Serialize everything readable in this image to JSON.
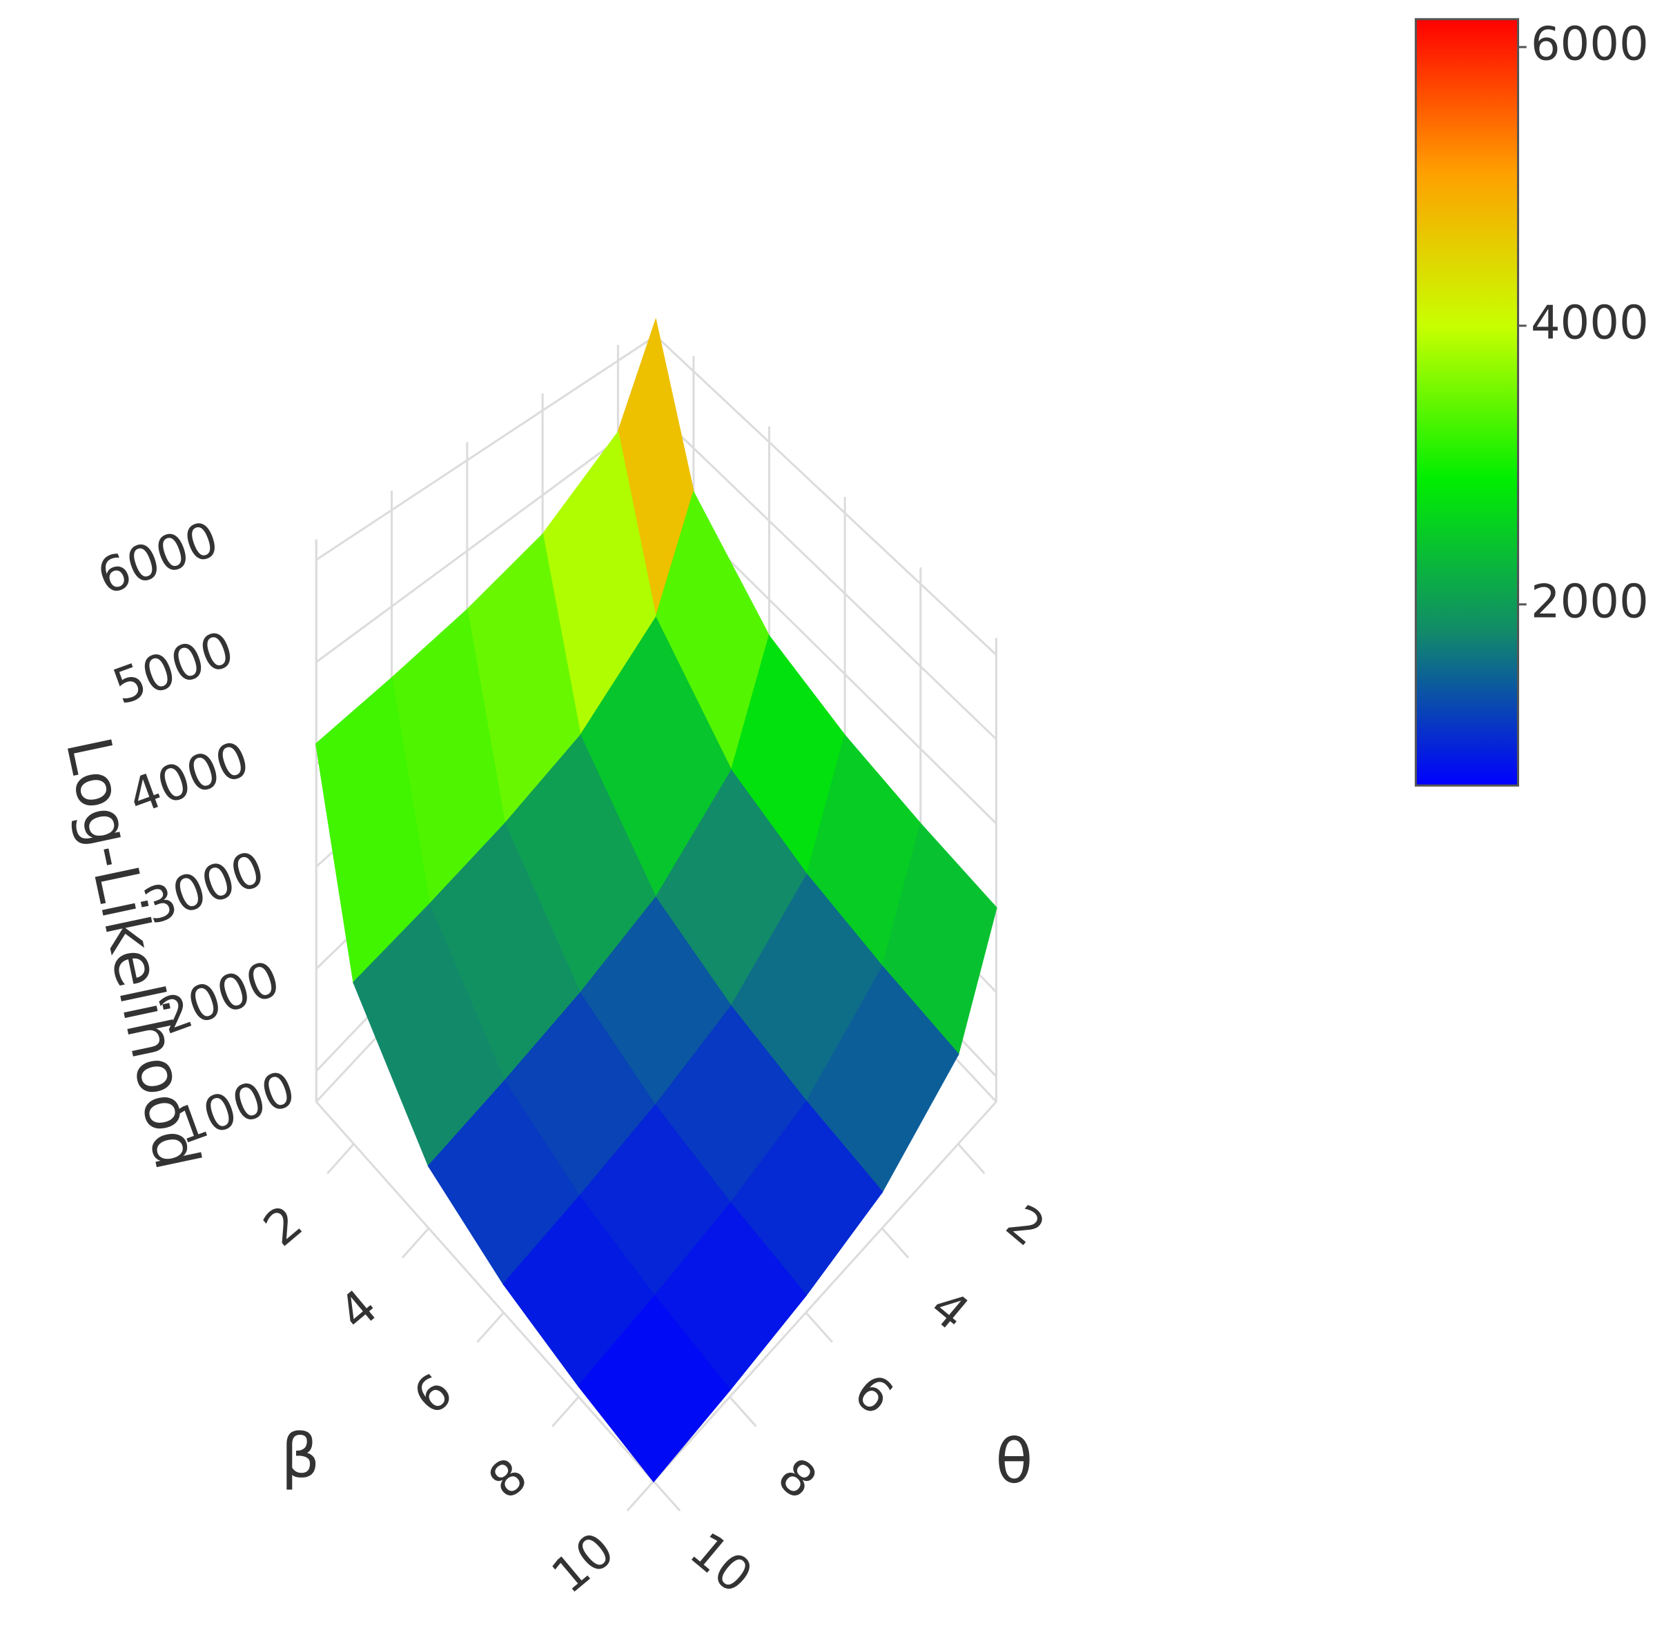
{
  "chart_data": {
    "type": "surface",
    "x_label": "β",
    "y_label": "θ",
    "z_label": "Log-Likelihood",
    "x": [
      1,
      2,
      4,
      6,
      8,
      10
    ],
    "y": [
      1,
      2,
      4,
      6,
      8,
      10
    ],
    "z": [
      [
        6200,
        5089,
        4534,
        4348,
        4256,
        4200
      ],
      [
        4422,
        3219,
        2617,
        2416,
        2316,
        2256
      ],
      [
        3533,
        2283,
        1658,
        1450,
        1346,
        1283
      ],
      [
        3237,
        1972,
        1339,
        1128,
        1023,
        959
      ],
      [
        3089,
        1816,
        1179,
        967,
        861,
        797
      ],
      [
        3000,
        1722,
        1083,
        870,
        764,
        700
      ]
    ],
    "xlim": [
      1,
      10
    ],
    "ylim": [
      1,
      10
    ],
    "zlim": [
      700,
      6200
    ],
    "xticks": [
      2,
      4,
      6,
      8,
      10
    ],
    "yticks": [
      2,
      4,
      6,
      8,
      10
    ],
    "zticks": [
      1000,
      2000,
      3000,
      4000,
      5000,
      6000
    ],
    "grid": true,
    "colorscale": [
      "#0000ff",
      "#128a6a",
      "#00ee00",
      "#c8ff00",
      "#ffa000",
      "#ff0000"
    ],
    "clim": [
      700,
      6200
    ],
    "colorbar_ticks": [
      2000,
      4000,
      6000
    ]
  }
}
